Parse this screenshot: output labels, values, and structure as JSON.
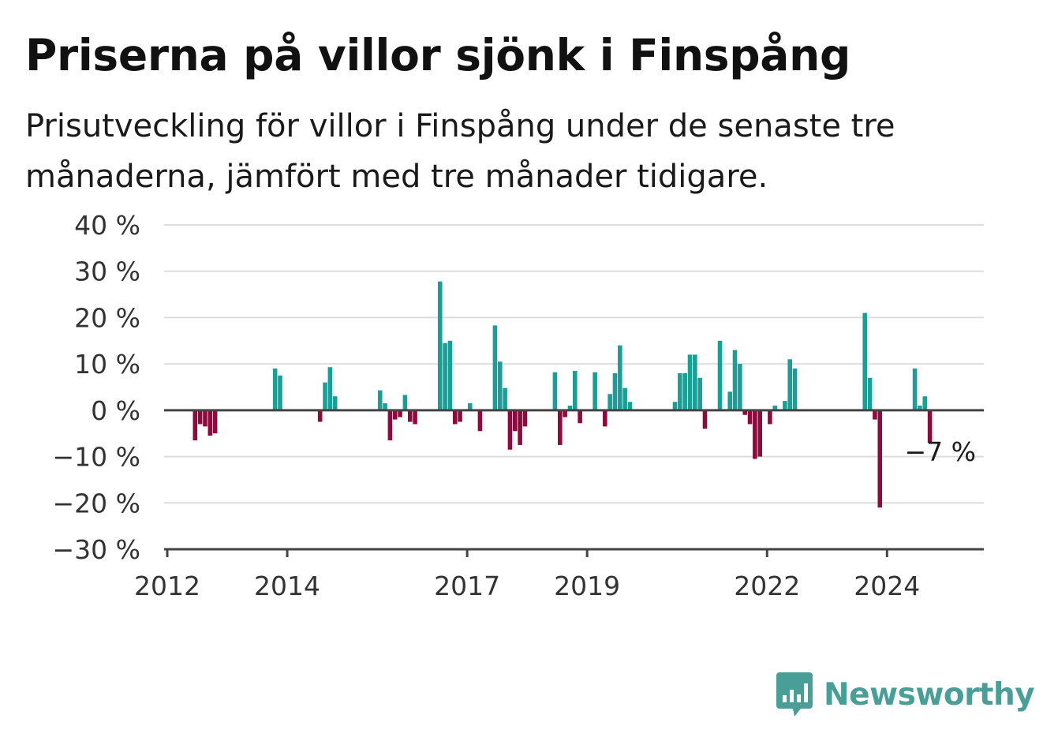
{
  "title": "Priserna på villor sjönk i Finspång",
  "subtitle": "Prisutveckling för villor i Finspång under de senaste tre månaderna, jämfört med tre månader tidigare.",
  "brand": "Newsworthy",
  "colors": {
    "positive": "#1a9e96",
    "negative": "#8c0a3c",
    "grid": "#dddddd",
    "axis": "#444444",
    "brand": "#4a9e98"
  },
  "chart_data": {
    "type": "bar",
    "title": "Priserna på villor sjönk i Finspång",
    "subtitle": "Prisutveckling för villor i Finspång under de senaste tre månaderna, jämfört med tre månader tidigare.",
    "ylim": [
      -30,
      40
    ],
    "y_ticks": [
      40,
      30,
      20,
      10,
      0,
      -10,
      -20,
      -30
    ],
    "y_tick_labels": [
      "40 %",
      "30 %",
      "20 %",
      "10 %",
      "0 %",
      "−10 %",
      "−20 %",
      "−30 %"
    ],
    "x_ticks": [
      {
        "label": "2012",
        "date": "2012-01"
      },
      {
        "label": "2014",
        "date": "2014-01"
      },
      {
        "label": "2017",
        "date": "2017-01"
      },
      {
        "label": "2019",
        "date": "2019-01"
      },
      {
        "label": "2022",
        "date": "2022-01"
      },
      {
        "label": "2024",
        "date": "2024-01"
      }
    ],
    "x_range": [
      "2012-01",
      "2025-09"
    ],
    "grid": true,
    "annotation": {
      "text": "−7 %",
      "date": "2024-12",
      "value": -7
    },
    "series": [
      {
        "points": [
          {
            "date": "2012-07",
            "value": -6.5
          },
          {
            "date": "2012-08",
            "value": -3
          },
          {
            "date": "2012-09",
            "value": -3.5
          },
          {
            "date": "2012-10",
            "value": -5.5
          },
          {
            "date": "2012-11",
            "value": -5
          },
          {
            "date": "2013-11",
            "value": 9
          },
          {
            "date": "2013-12",
            "value": 7.5
          },
          {
            "date": "2014-08",
            "value": -2.5
          },
          {
            "date": "2014-09",
            "value": 6
          },
          {
            "date": "2014-10",
            "value": 9.3
          },
          {
            "date": "2014-11",
            "value": 3
          },
          {
            "date": "2015-08",
            "value": 4.3
          },
          {
            "date": "2015-09",
            "value": 1.5
          },
          {
            "date": "2015-10",
            "value": -6.5
          },
          {
            "date": "2015-11",
            "value": -2
          },
          {
            "date": "2015-12",
            "value": -1.5
          },
          {
            "date": "2016-01",
            "value": 3.3
          },
          {
            "date": "2016-02",
            "value": -2.5
          },
          {
            "date": "2016-03",
            "value": -3
          },
          {
            "date": "2016-08",
            "value": 27.8
          },
          {
            "date": "2016-09",
            "value": 14.5
          },
          {
            "date": "2016-10",
            "value": 15
          },
          {
            "date": "2016-11",
            "value": -3
          },
          {
            "date": "2016-12",
            "value": -2.5
          },
          {
            "date": "2017-02",
            "value": 1.5
          },
          {
            "date": "2017-04",
            "value": -4.5
          },
          {
            "date": "2017-07",
            "value": 18.3
          },
          {
            "date": "2017-08",
            "value": 10.5
          },
          {
            "date": "2017-09",
            "value": 4.8
          },
          {
            "date": "2017-10",
            "value": -8.5
          },
          {
            "date": "2017-11",
            "value": -4.5
          },
          {
            "date": "2017-12",
            "value": -7.5
          },
          {
            "date": "2018-01",
            "value": -3.5
          },
          {
            "date": "2018-07",
            "value": 8.2
          },
          {
            "date": "2018-08",
            "value": -7.5
          },
          {
            "date": "2018-09",
            "value": -1.5
          },
          {
            "date": "2018-10",
            "value": 1
          },
          {
            "date": "2018-11",
            "value": 8.5
          },
          {
            "date": "2018-12",
            "value": -2.8
          },
          {
            "date": "2019-03",
            "value": 8.2
          },
          {
            "date": "2019-05",
            "value": -3.5
          },
          {
            "date": "2019-06",
            "value": 3.5
          },
          {
            "date": "2019-07",
            "value": 8
          },
          {
            "date": "2019-08",
            "value": 14
          },
          {
            "date": "2019-09",
            "value": 4.8
          },
          {
            "date": "2019-10",
            "value": 1.8
          },
          {
            "date": "2020-07",
            "value": 1.8
          },
          {
            "date": "2020-08",
            "value": 8
          },
          {
            "date": "2020-09",
            "value": 8
          },
          {
            "date": "2020-10",
            "value": 12
          },
          {
            "date": "2020-11",
            "value": 12
          },
          {
            "date": "2020-12",
            "value": 7
          },
          {
            "date": "2021-01",
            "value": -4
          },
          {
            "date": "2021-04",
            "value": 15
          },
          {
            "date": "2021-06",
            "value": 4
          },
          {
            "date": "2021-07",
            "value": 13
          },
          {
            "date": "2021-08",
            "value": 10
          },
          {
            "date": "2021-09",
            "value": -1
          },
          {
            "date": "2021-10",
            "value": -3
          },
          {
            "date": "2021-11",
            "value": -10.5
          },
          {
            "date": "2021-12",
            "value": -10
          },
          {
            "date": "2022-02",
            "value": -3
          },
          {
            "date": "2022-03",
            "value": 1
          },
          {
            "date": "2022-05",
            "value": 2
          },
          {
            "date": "2022-06",
            "value": 11
          },
          {
            "date": "2022-07",
            "value": 9
          },
          {
            "date": "2023-09",
            "value": 21
          },
          {
            "date": "2023-10",
            "value": 7
          },
          {
            "date": "2023-11",
            "value": -2
          },
          {
            "date": "2023-12",
            "value": -21
          },
          {
            "date": "2024-07",
            "value": 9
          },
          {
            "date": "2024-08",
            "value": 1
          },
          {
            "date": "2024-09",
            "value": 3
          },
          {
            "date": "2024-10",
            "value": -7
          }
        ]
      }
    ]
  }
}
